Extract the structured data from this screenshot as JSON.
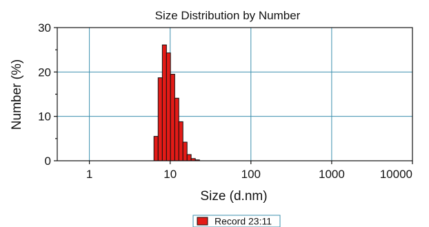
{
  "chart_data": {
    "type": "bar",
    "title": "Size Distribution by Number",
    "xlabel": "Size (d.nm)",
    "ylabel": "Number (%)",
    "xscale": "log",
    "xlim": [
      0.4,
      10000
    ],
    "ylim": [
      0,
      30
    ],
    "xticks": [
      1,
      10,
      100,
      1000,
      10000
    ],
    "xtick_labels": [
      "1",
      "10",
      "100",
      "1000",
      "10000"
    ],
    "yticks": [
      0,
      10,
      20,
      30
    ],
    "ytick_labels": [
      "0",
      "10",
      "20",
      "30"
    ],
    "grid": true,
    "legend_position": "bottom-center",
    "series": [
      {
        "name": "Record 23:11",
        "color": "#e31b17",
        "bins": [
          {
            "x0": 6.3,
            "x1": 7.1,
            "value": 5.5
          },
          {
            "x0": 7.1,
            "x1": 8.0,
            "value": 18.7
          },
          {
            "x0": 8.0,
            "x1": 9.0,
            "value": 26.1
          },
          {
            "x0": 9.0,
            "x1": 10.1,
            "value": 24.3
          },
          {
            "x0": 10.1,
            "x1": 11.4,
            "value": 19.5
          },
          {
            "x0": 11.4,
            "x1": 12.8,
            "value": 14.1
          },
          {
            "x0": 12.8,
            "x1": 14.4,
            "value": 8.8
          },
          {
            "x0": 14.4,
            "x1": 16.2,
            "value": 4.2
          },
          {
            "x0": 16.2,
            "x1": 18.2,
            "value": 1.4
          },
          {
            "x0": 18.2,
            "x1": 20.5,
            "value": 0.5
          },
          {
            "x0": 20.5,
            "x1": 23.1,
            "value": 0.2
          }
        ]
      }
    ]
  }
}
